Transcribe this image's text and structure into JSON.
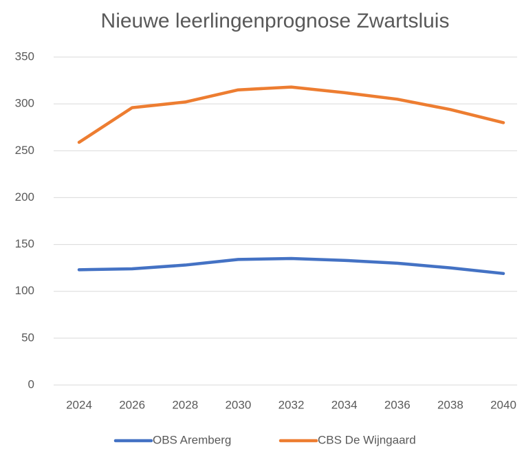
{
  "chart_data": {
    "type": "line",
    "title": "Nieuwe leerlingenprognose Zwartsluis",
    "categories": [
      "2024",
      "2026",
      "2028",
      "2030",
      "2032",
      "2034",
      "2036",
      "2038",
      "2040"
    ],
    "series": [
      {
        "name": "OBS Aremberg",
        "color": "#4472c4",
        "values": [
          123,
          124,
          128,
          134,
          135,
          133,
          130,
          125,
          119
        ]
      },
      {
        "name": "CBS De Wijngaard",
        "color": "#ed7d31",
        "values": [
          259,
          296,
          302,
          315,
          318,
          312,
          305,
          294,
          280
        ]
      }
    ],
    "ylim": [
      0,
      350
    ],
    "yticks": [
      0,
      50,
      100,
      150,
      200,
      250,
      300,
      350
    ],
    "grid": true,
    "legend": "bottom"
  }
}
